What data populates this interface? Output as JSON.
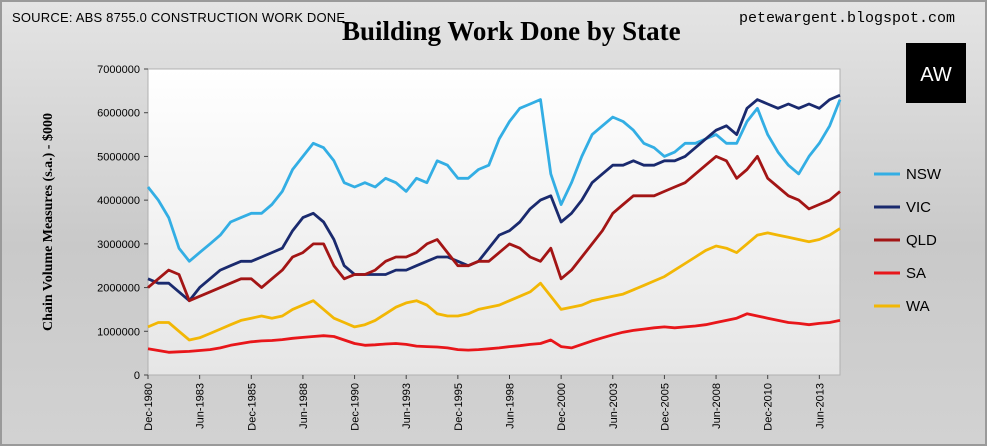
{
  "header": {
    "source": "SOURCE: ABS 8755.0 CONSTRUCTION WORK DONE",
    "title": "Building Work Done by State",
    "blog": "petewargent.blogspot.com",
    "logo_text": "AW"
  },
  "chart_data": {
    "type": "line",
    "title": "Building Work Done by State",
    "xlabel": "",
    "ylabel": "Chain Volume Measures (s.a.) - $000",
    "ylim": [
      0,
      7000000
    ],
    "yticks": [
      0,
      1000000,
      2000000,
      3000000,
      4000000,
      5000000,
      6000000,
      7000000
    ],
    "ytick_labels": [
      "0",
      "1000000",
      "2000000",
      "3000000",
      "4000000",
      "5000000",
      "6000000",
      "7000000"
    ],
    "x_start": "Dec-1980",
    "x_end": "Jun-2014",
    "x_frequency": "quarterly",
    "x": [
      "Dec-1980",
      "Jun-1981",
      "Dec-1981",
      "Jun-1982",
      "Dec-1982",
      "Jun-1983",
      "Dec-1983",
      "Jun-1984",
      "Dec-1984",
      "Jun-1985",
      "Dec-1985",
      "Jun-1986",
      "Dec-1986",
      "Jun-1987",
      "Dec-1987",
      "Jun-1988",
      "Dec-1988",
      "Jun-1989",
      "Dec-1989",
      "Jun-1990",
      "Dec-1990",
      "Jun-1991",
      "Dec-1991",
      "Jun-1992",
      "Dec-1992",
      "Jun-1993",
      "Dec-1993",
      "Jun-1994",
      "Dec-1994",
      "Jun-1995",
      "Dec-1995",
      "Jun-1996",
      "Dec-1996",
      "Jun-1997",
      "Dec-1997",
      "Jun-1998",
      "Dec-1998",
      "Jun-1999",
      "Dec-1999",
      "Jun-2000",
      "Dec-2000",
      "Jun-2001",
      "Dec-2001",
      "Jun-2002",
      "Dec-2002",
      "Jun-2003",
      "Dec-2003",
      "Jun-2004",
      "Dec-2004",
      "Jun-2005",
      "Dec-2005",
      "Jun-2006",
      "Dec-2006",
      "Jun-2007",
      "Dec-2007",
      "Jun-2008",
      "Dec-2008",
      "Jun-2009",
      "Dec-2009",
      "Jun-2010",
      "Dec-2010",
      "Jun-2011",
      "Dec-2011",
      "Jun-2012",
      "Dec-2012",
      "Jun-2013",
      "Dec-2013",
      "Jun-2014"
    ],
    "xticks": [
      "Dec-1980",
      "Jun-1983",
      "Dec-1985",
      "Jun-1988",
      "Dec-1990",
      "Jun-1993",
      "Dec-1995",
      "Jun-1998",
      "Dec-2000",
      "Jun-2003",
      "Dec-2005",
      "Jun-2008",
      "Dec-2010",
      "Jun-2013"
    ],
    "grid": false,
    "legend_position": "right",
    "series": [
      {
        "name": "NSW",
        "color": "#33aee4",
        "values": [
          4300000,
          4000000,
          3600000,
          2900000,
          2600000,
          2800000,
          3000000,
          3200000,
          3500000,
          3600000,
          3700000,
          3700000,
          3900000,
          4200000,
          4700000,
          5000000,
          5300000,
          5200000,
          4900000,
          4400000,
          4300000,
          4400000,
          4300000,
          4500000,
          4400000,
          4200000,
          4500000,
          4400000,
          4900000,
          4800000,
          4500000,
          4500000,
          4700000,
          4800000,
          5400000,
          5800000,
          6100000,
          6200000,
          6300000,
          4600000,
          3900000,
          4400000,
          5000000,
          5500000,
          5700000,
          5900000,
          5800000,
          5600000,
          5300000,
          5200000,
          5000000,
          5100000,
          5300000,
          5300000,
          5400000,
          5500000,
          5300000,
          5300000,
          5800000,
          6100000,
          5500000,
          5100000,
          4800000,
          4600000,
          5000000,
          5300000,
          5700000,
          6300000
        ]
      },
      {
        "name": "VIC",
        "color": "#1a2a6e",
        "values": [
          2200000,
          2100000,
          2100000,
          1900000,
          1700000,
          2000000,
          2200000,
          2400000,
          2500000,
          2600000,
          2600000,
          2700000,
          2800000,
          2900000,
          3300000,
          3600000,
          3700000,
          3500000,
          3100000,
          2500000,
          2300000,
          2300000,
          2300000,
          2300000,
          2400000,
          2400000,
          2500000,
          2600000,
          2700000,
          2700000,
          2600000,
          2500000,
          2600000,
          2900000,
          3200000,
          3300000,
          3500000,
          3800000,
          4000000,
          4100000,
          3500000,
          3700000,
          4000000,
          4400000,
          4600000,
          4800000,
          4800000,
          4900000,
          4800000,
          4800000,
          4900000,
          4900000,
          5000000,
          5200000,
          5400000,
          5600000,
          5700000,
          5500000,
          6100000,
          6300000,
          6200000,
          6100000,
          6200000,
          6100000,
          6200000,
          6100000,
          6300000,
          6400000
        ]
      },
      {
        "name": "QLD",
        "color": "#a31515",
        "values": [
          2000000,
          2200000,
          2400000,
          2300000,
          1700000,
          1800000,
          1900000,
          2000000,
          2100000,
          2200000,
          2200000,
          2000000,
          2200000,
          2400000,
          2700000,
          2800000,
          3000000,
          3000000,
          2500000,
          2200000,
          2300000,
          2300000,
          2400000,
          2600000,
          2700000,
          2700000,
          2800000,
          3000000,
          3100000,
          2800000,
          2500000,
          2500000,
          2600000,
          2600000,
          2800000,
          3000000,
          2900000,
          2700000,
          2600000,
          2900000,
          2200000,
          2400000,
          2700000,
          3000000,
          3300000,
          3700000,
          3900000,
          4100000,
          4100000,
          4100000,
          4200000,
          4300000,
          4400000,
          4600000,
          4800000,
          5000000,
          4900000,
          4500000,
          4700000,
          5000000,
          4500000,
          4300000,
          4100000,
          4000000,
          3800000,
          3900000,
          4000000,
          4200000
        ]
      },
      {
        "name": "SA",
        "color": "#e8161a",
        "values": [
          600000,
          560000,
          520000,
          530000,
          540000,
          560000,
          580000,
          620000,
          680000,
          720000,
          760000,
          780000,
          790000,
          810000,
          840000,
          860000,
          880000,
          900000,
          880000,
          800000,
          720000,
          680000,
          690000,
          710000,
          720000,
          700000,
          660000,
          650000,
          640000,
          620000,
          580000,
          570000,
          580000,
          600000,
          620000,
          650000,
          670000,
          700000,
          720000,
          800000,
          650000,
          620000,
          700000,
          780000,
          850000,
          920000,
          980000,
          1020000,
          1050000,
          1080000,
          1100000,
          1080000,
          1100000,
          1120000,
          1150000,
          1200000,
          1250000,
          1300000,
          1400000,
          1350000,
          1300000,
          1250000,
          1200000,
          1180000,
          1150000,
          1180000,
          1200000,
          1250000
        ]
      },
      {
        "name": "WA",
        "color": "#f2b705",
        "values": [
          1100000,
          1200000,
          1200000,
          1000000,
          800000,
          850000,
          950000,
          1050000,
          1150000,
          1250000,
          1300000,
          1350000,
          1300000,
          1350000,
          1500000,
          1600000,
          1700000,
          1500000,
          1300000,
          1200000,
          1100000,
          1150000,
          1250000,
          1400000,
          1550000,
          1650000,
          1700000,
          1600000,
          1400000,
          1350000,
          1350000,
          1400000,
          1500000,
          1550000,
          1600000,
          1700000,
          1800000,
          1900000,
          2100000,
          1800000,
          1500000,
          1550000,
          1600000,
          1700000,
          1750000,
          1800000,
          1850000,
          1950000,
          2050000,
          2150000,
          2250000,
          2400000,
          2550000,
          2700000,
          2850000,
          2950000,
          2900000,
          2800000,
          3000000,
          3200000,
          3250000,
          3200000,
          3150000,
          3100000,
          3050000,
          3100000,
          3200000,
          3350000
        ]
      }
    ]
  }
}
